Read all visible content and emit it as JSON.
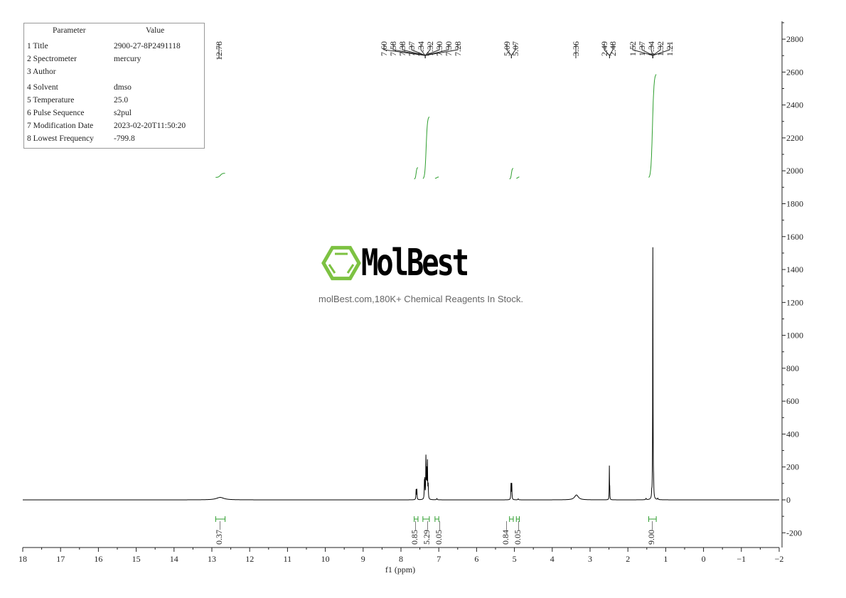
{
  "parameters": {
    "header": [
      "Parameter",
      "Value"
    ],
    "rows": [
      {
        "name": "1 Title",
        "value": "2900-27-8P2491118"
      },
      {
        "name": "2 Spectrometer",
        "value": "mercury"
      },
      {
        "name": "3 Author",
        "value": ""
      },
      {
        "name": "4 Solvent",
        "value": "dmso"
      },
      {
        "name": "5 Temperature",
        "value": "25.0"
      },
      {
        "name": "6 Pulse Sequence",
        "value": "s2pul"
      },
      {
        "name": "7 Modification Date",
        "value": "2023-02-20T11:50:20"
      },
      {
        "name": "8 Lowest Frequency",
        "value": "-799.8"
      }
    ]
  },
  "watermark": {
    "brand": "MolBest",
    "tagline": "molBest.com,180K+ Chemical Reagents In Stock.",
    "logo_color": "#7dc242"
  },
  "chart_data": {
    "type": "line",
    "title": "",
    "xlabel": "f1 (ppm)",
    "ylabel": "",
    "xlim": [
      18,
      -2
    ],
    "ylim": [
      -300,
      2850
    ],
    "x_ticks": [
      18,
      17,
      16,
      15,
      14,
      13,
      12,
      11,
      10,
      9,
      8,
      7,
      6,
      5,
      4,
      3,
      2,
      1,
      0,
      -1,
      -2
    ],
    "y_ticks": [
      -200,
      0,
      200,
      400,
      600,
      800,
      1000,
      1200,
      1400,
      1600,
      1800,
      2000,
      2200,
      2400,
      2600,
      2800
    ],
    "grid": false,
    "line_color": "#000000",
    "integral_color": "#2e9e2e",
    "peaks": [
      {
        "ppm": 12.78,
        "height": 15,
        "width": 0.12
      },
      {
        "ppm": 7.6,
        "height": 60,
        "width": 0.006
      },
      {
        "ppm": 7.58,
        "height": 62,
        "width": 0.006
      },
      {
        "ppm": 7.38,
        "height": 90,
        "width": 0.006
      },
      {
        "ppm": 7.37,
        "height": 100,
        "width": 0.006
      },
      {
        "ppm": 7.34,
        "height": 250,
        "width": 0.006
      },
      {
        "ppm": 7.32,
        "height": 160,
        "width": 0.006
      },
      {
        "ppm": 7.3,
        "height": 200,
        "width": 0.006
      },
      {
        "ppm": 7.3,
        "height": 20,
        "width": 0.006
      },
      {
        "ppm": 7.28,
        "height": 80,
        "width": 0.006
      },
      {
        "ppm": 7.05,
        "height": 8,
        "width": 0.01
      },
      {
        "ppm": 5.09,
        "height": 95,
        "width": 0.006
      },
      {
        "ppm": 5.07,
        "height": 95,
        "width": 0.006
      },
      {
        "ppm": 4.9,
        "height": 6,
        "width": 0.01
      },
      {
        "ppm": 3.36,
        "height": 30,
        "width": 0.06
      },
      {
        "ppm": 2.49,
        "height": 200,
        "width": 0.004
      },
      {
        "ppm": 2.48,
        "height": 60,
        "width": 0.004
      },
      {
        "ppm": 1.34,
        "height": 1530,
        "width": 0.005
      },
      {
        "ppm": 1.32,
        "height": 70,
        "width": 0.005
      },
      {
        "ppm": 1.37,
        "height": 30,
        "width": 0.005
      },
      {
        "ppm": 1.52,
        "height": 8,
        "width": 0.01
      },
      {
        "ppm": 1.21,
        "height": 8,
        "width": 0.01
      }
    ],
    "peak_labels": [
      {
        "group": [
          "12.78"
        ],
        "target": 12.78
      },
      {
        "group": [
          "7.60",
          "7.58",
          "7.38",
          "7.37",
          "7.34",
          "7.32",
          "7.30",
          "7.30",
          "7.28"
        ],
        "target": 7.36
      },
      {
        "group": [
          "5.09",
          "5.07"
        ],
        "target": 5.08
      },
      {
        "group": [
          "3.36"
        ],
        "target": 3.36
      },
      {
        "group": [
          "2.49",
          "2.48"
        ],
        "target": 2.485
      },
      {
        "group": [
          "1.52",
          "1.37",
          "1.34",
          "1.32",
          "1.21"
        ],
        "target": 1.34
      }
    ],
    "integrals": [
      {
        "value": "0.37",
        "from": 12.9,
        "to": 12.65,
        "start": 1960,
        "end": 1985
      },
      {
        "value": "0.85",
        "from": 7.65,
        "to": 7.55,
        "start": 1950,
        "end": 2020
      },
      {
        "value": "5.29",
        "from": 7.42,
        "to": 7.25,
        "start": 1950,
        "end": 2330
      },
      {
        "value": "0.05",
        "from": 7.1,
        "to": 7.0,
        "start": 1955,
        "end": 1962
      },
      {
        "value": "0.84",
        "from": 5.13,
        "to": 5.03,
        "start": 1950,
        "end": 2015
      },
      {
        "value": "0.05",
        "from": 4.95,
        "to": 4.87,
        "start": 1955,
        "end": 1962
      },
      {
        "value": "9.00",
        "from": 1.45,
        "to": 1.25,
        "start": 1955,
        "end": 2590
      }
    ]
  }
}
